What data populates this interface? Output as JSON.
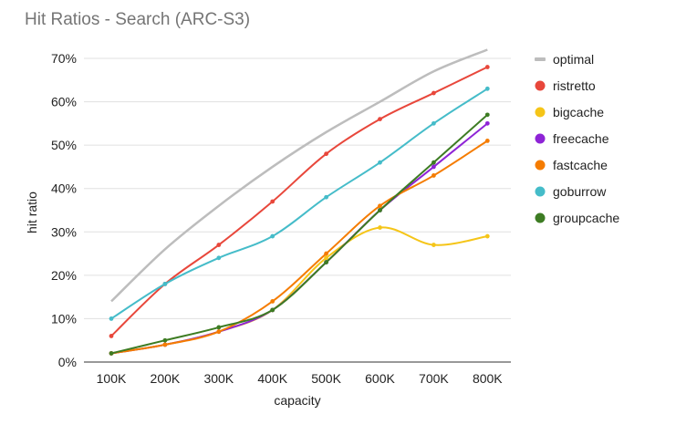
{
  "chart_data": {
    "type": "line",
    "title": "Hit Ratios - Search (ARC-S3)",
    "xlabel": "capacity",
    "ylabel": "hit ratio",
    "categories": [
      "100K",
      "200K",
      "300K",
      "400K",
      "500K",
      "600K",
      "700K",
      "800K"
    ],
    "y_ticks": [
      "0%",
      "10%",
      "20%",
      "30%",
      "40%",
      "50%",
      "60%",
      "70%"
    ],
    "ylim": [
      0,
      70
    ],
    "grid": true,
    "legend_position": "right",
    "series": [
      {
        "name": "optimal",
        "color": "#bdbdbd",
        "markers": false,
        "values": [
          14,
          26,
          36,
          45,
          53,
          60,
          67,
          72
        ]
      },
      {
        "name": "ristretto",
        "color": "#e8473b",
        "markers": true,
        "values": [
          6,
          18,
          27,
          37,
          48,
          56,
          62,
          68
        ]
      },
      {
        "name": "bigcache",
        "color": "#f5c518",
        "markers": true,
        "values": [
          2,
          4,
          7,
          12,
          24,
          31,
          27,
          29
        ]
      },
      {
        "name": "freecache",
        "color": "#8e24d6",
        "markers": true,
        "values": [
          2,
          4,
          7,
          12,
          23,
          35,
          45,
          55
        ]
      },
      {
        "name": "fastcache",
        "color": "#f57c00",
        "markers": true,
        "values": [
          2,
          4,
          7,
          14,
          25,
          36,
          43,
          51
        ]
      },
      {
        "name": "goburrow",
        "color": "#45bcc9",
        "markers": true,
        "values": [
          10,
          18,
          24,
          29,
          38,
          46,
          55,
          63
        ]
      },
      {
        "name": "groupcache",
        "color": "#3d7c23",
        "markers": true,
        "values": [
          2,
          5,
          8,
          12,
          23,
          35,
          46,
          57
        ]
      }
    ]
  }
}
